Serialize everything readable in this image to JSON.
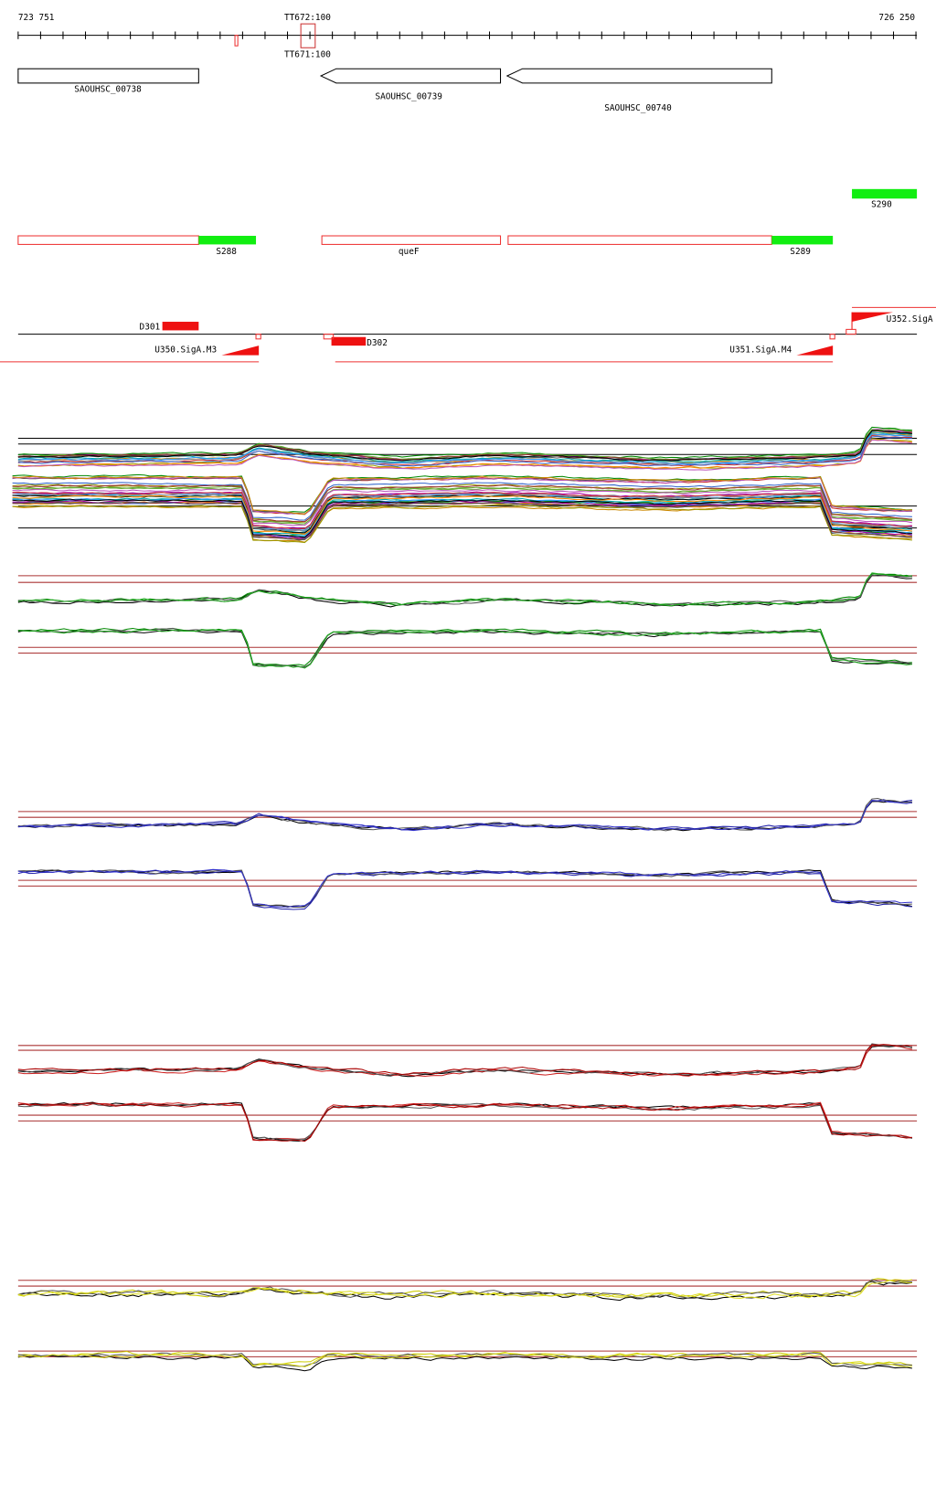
{
  "ruler": {
    "start": "723 751",
    "end": "726 250"
  },
  "terminators": [
    "TT672:100",
    "TT671:100"
  ],
  "genes": [
    "SAOUHSC_00738",
    "SAOUHSC_00739",
    "SAOUHSC_00740"
  ],
  "segments": [
    "S288",
    "queF",
    "S289",
    "S290"
  ],
  "features": [
    "D301",
    "D302",
    "U350.SigA.M3",
    "U351.SigA.M4",
    "U352.SigA"
  ]
}
